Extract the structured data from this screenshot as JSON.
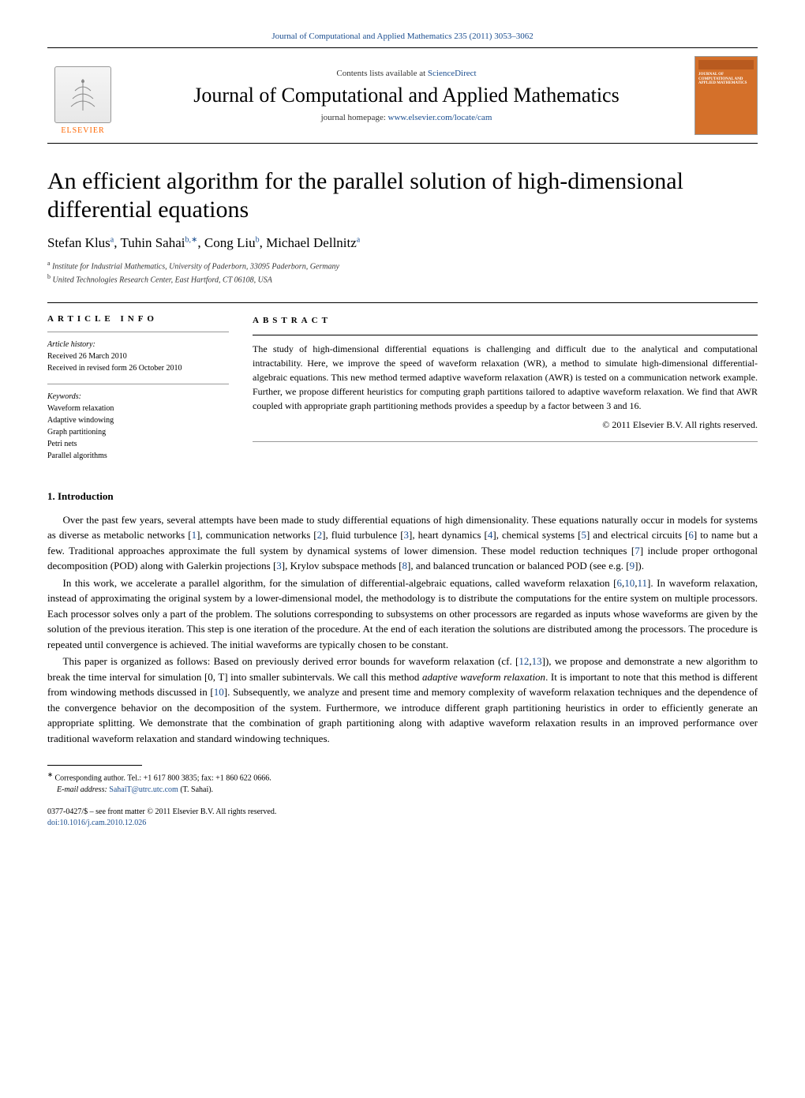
{
  "top_link": "Journal of Computational and Applied Mathematics 235 (2011) 3053–3062",
  "header": {
    "contents_prefix": "Contents lists available at ",
    "contents_link": "ScienceDirect",
    "journal_name": "Journal of Computational and Applied Mathematics",
    "homepage_prefix": "journal homepage: ",
    "homepage_link": "www.elsevier.com/locate/cam",
    "elsevier_label": "ELSEVIER",
    "cover_title": "JOURNAL OF COMPUTATIONAL AND APPLIED MATHEMATICS"
  },
  "title": "An efficient algorithm for the parallel solution of high-dimensional differential equations",
  "authors_html": "Stefan Klus<sup>a</sup>, Tuhin Sahai<sup>b,∗</sup>, Cong Liu<sup>b</sup>, Michael Dellnitz<sup>a</sup>",
  "affiliations": {
    "a": "Institute for Industrial Mathematics, University of Paderborn, 33095 Paderborn, Germany",
    "b": "United Technologies Research Center, East Hartford, CT 06108, USA"
  },
  "article_info": {
    "header": "ARTICLE INFO",
    "history_label": "Article history:",
    "history": [
      "Received 26 March 2010",
      "Received in revised form 26 October 2010"
    ],
    "keywords_label": "Keywords:",
    "keywords": [
      "Waveform relaxation",
      "Adaptive windowing",
      "Graph partitioning",
      "Petri nets",
      "Parallel algorithms"
    ]
  },
  "abstract": {
    "header": "ABSTRACT",
    "body": "The study of high-dimensional differential equations is challenging and difficult due to the analytical and computational intractability. Here, we improve the speed of waveform relaxation (WR), a method to simulate high-dimensional differential-algebraic equations. This new method termed adaptive waveform relaxation (AWR) is tested on a communication network example. Further, we propose different heuristics for computing graph partitions tailored to adaptive waveform relaxation. We find that AWR coupled with appropriate graph partitioning methods provides a speedup by a factor between 3 and 16.",
    "copyright": "© 2011 Elsevier B.V. All rights reserved."
  },
  "section1": {
    "heading": "1.  Introduction",
    "p1_parts": [
      "Over the past few years, several attempts have been made to study differential equations of high dimensionality. These equations naturally occur in models for systems as diverse as metabolic networks [",
      "1",
      "], communication networks [",
      "2",
      "], fluid turbulence [",
      "3",
      "], heart dynamics [",
      "4",
      "], chemical systems [",
      "5",
      "] and electrical circuits [",
      "6",
      "] to name but a few. Traditional approaches approximate the full system by dynamical systems of lower dimension. These model reduction techniques [",
      "7",
      "] include proper orthogonal decomposition (POD) along with Galerkin projections [",
      "3",
      "], Krylov subspace methods [",
      "8",
      "], and balanced truncation or balanced POD (see e.g. [",
      "9",
      "])."
    ],
    "p2_parts": [
      "In this work, we accelerate a parallel algorithm, for the simulation of differential-algebraic equations, called waveform relaxation [",
      "6",
      ",",
      "10",
      ",",
      "11",
      "]. In waveform relaxation, instead of approximating the original system by a lower-dimensional model, the methodology is to distribute the computations for the entire system on multiple processors. Each processor solves only a part of the problem. The solutions corresponding to subsystems on other processors are regarded as inputs whose waveforms are given by the solution of the previous iteration. This step is one iteration of the procedure. At the end of each iteration the solutions are distributed among the processors. The procedure is repeated until convergence is achieved. The initial waveforms are typically chosen to be constant."
    ],
    "p3_parts": [
      "This paper is organized as follows: Based on previously derived error bounds for waveform relaxation (cf. [",
      "12",
      ",",
      "13",
      "]), we propose and demonstrate a new algorithm to break the time interval for simulation [0, T] into smaller subintervals. We call this method ",
      "adaptive waveform relaxation",
      ". It is important to note that this method is different from windowing methods discussed in [",
      "10",
      "]. Subsequently, we analyze and present time and memory complexity of waveform relaxation techniques and the dependence of the convergence behavior on the decomposition of the system. Furthermore, we introduce different graph partitioning heuristics in order to efficiently generate an appropriate splitting. We demonstrate that the combination of graph partitioning along with adaptive waveform relaxation results in an improved performance over traditional waveform relaxation and standard windowing techniques."
    ]
  },
  "footnote": {
    "corresp": "Corresponding author. Tel.: +1 617 800 3835; fax: +1 860 622 0666.",
    "email_label": "E-mail address: ",
    "email": "SahaiT@utrc.utc.com",
    "email_suffix": " (T. Sahai)."
  },
  "footer": {
    "line1": "0377-0427/$ – see front matter © 2011 Elsevier B.V. All rights reserved.",
    "doi": "doi:10.1016/j.cam.2010.12.026"
  }
}
